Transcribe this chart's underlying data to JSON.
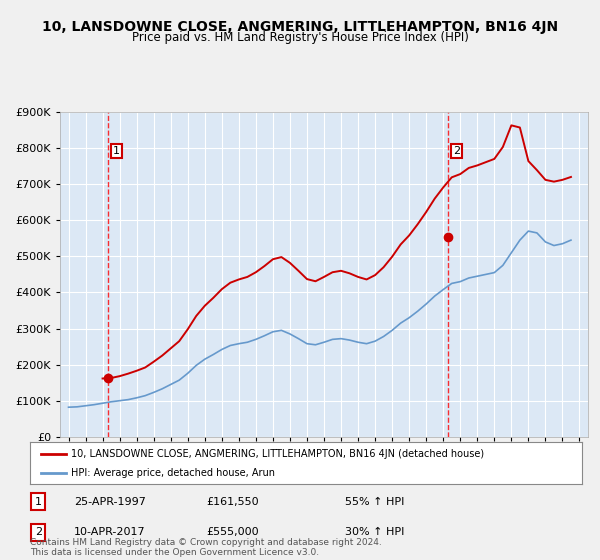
{
  "title": "10, LANSDOWNE CLOSE, ANGMERING, LITTLEHAMPTON, BN16 4JN",
  "subtitle": "Price paid vs. HM Land Registry's House Price Index (HPI)",
  "ylabel": "",
  "xlabel": "",
  "ylim": [
    0,
    900000
  ],
  "yticks": [
    0,
    100000,
    200000,
    300000,
    400000,
    500000,
    600000,
    700000,
    800000,
    900000
  ],
  "ytick_labels": [
    "£0",
    "£100K",
    "£200K",
    "£300K",
    "£400K",
    "£500K",
    "£600K",
    "£700K",
    "£800K",
    "£900K"
  ],
  "background_color": "#e8f0f8",
  "plot_bg_color": "#dce8f5",
  "grid_color": "#ffffff",
  "purchases": [
    {
      "num": 1,
      "date": "25-APR-1997",
      "price": 161550,
      "pct": "55%",
      "year": 1997.32
    },
    {
      "num": 2,
      "date": "10-APR-2017",
      "price": 555000,
      "pct": "30%",
      "year": 2017.28
    }
  ],
  "legend_line1": "10, LANSDOWNE CLOSE, ANGMERING, LITTLEHAMPTON, BN16 4JN (detached house)",
  "legend_line2": "HPI: Average price, detached house, Arun",
  "footer": "Contains HM Land Registry data © Crown copyright and database right 2024.\nThis data is licensed under the Open Government Licence v3.0.",
  "red_color": "#cc0000",
  "blue_color": "#6699cc",
  "marker_box_color": "#cc0000",
  "hpi_years": [
    1995,
    1995.5,
    1996,
    1996.5,
    1997,
    1997.5,
    1998,
    1998.5,
    1999,
    1999.5,
    2000,
    2000.5,
    2001,
    2001.5,
    2002,
    2002.5,
    2003,
    2003.5,
    2004,
    2004.5,
    2005,
    2005.5,
    2006,
    2006.5,
    2007,
    2007.5,
    2008,
    2008.5,
    2009,
    2009.5,
    2010,
    2010.5,
    2011,
    2011.5,
    2012,
    2012.5,
    2013,
    2013.5,
    2014,
    2014.5,
    2015,
    2015.5,
    2016,
    2016.5,
    2017,
    2017.5,
    2018,
    2018.5,
    2019,
    2019.5,
    2020,
    2020.5,
    2021,
    2021.5,
    2022,
    2022.5,
    2023,
    2023.5,
    2024,
    2024.5
  ],
  "hpi_values": [
    82000,
    83000,
    86000,
    89000,
    93000,
    97000,
    100000,
    103000,
    108000,
    114000,
    123000,
    133000,
    145000,
    157000,
    176000,
    198000,
    215000,
    228000,
    242000,
    253000,
    258000,
    262000,
    270000,
    280000,
    291000,
    295000,
    285000,
    272000,
    258000,
    255000,
    262000,
    270000,
    272000,
    268000,
    262000,
    258000,
    265000,
    278000,
    295000,
    315000,
    330000,
    348000,
    368000,
    390000,
    408000,
    425000,
    430000,
    440000,
    445000,
    450000,
    455000,
    475000,
    510000,
    545000,
    570000,
    565000,
    540000,
    530000,
    535000,
    545000
  ],
  "price_years": [
    1995,
    1995.5,
    1996,
    1996.5,
    1997,
    1997.5,
    1998,
    1998.5,
    1999,
    1999.5,
    2000,
    2000.5,
    2001,
    2001.5,
    2002,
    2002.5,
    2003,
    2003.5,
    2004,
    2004.5,
    2005,
    2005.5,
    2006,
    2006.5,
    2007,
    2007.5,
    2008,
    2008.5,
    2009,
    2009.5,
    2010,
    2010.5,
    2011,
    2011.5,
    2012,
    2012.5,
    2013,
    2013.5,
    2014,
    2014.5,
    2015,
    2015.5,
    2016,
    2016.5,
    2017,
    2017.5,
    2018,
    2018.5,
    2019,
    2019.5,
    2020,
    2020.5,
    2021,
    2021.5,
    2022,
    2022.5,
    2023,
    2023.5,
    2024,
    2024.5
  ],
  "price_values": [
    null,
    null,
    null,
    null,
    161550,
    163000,
    168000,
    175000,
    183000,
    192000,
    208000,
    225000,
    245000,
    265000,
    298000,
    335000,
    363000,
    385000,
    409000,
    427000,
    436000,
    443000,
    456000,
    473000,
    492000,
    498000,
    482000,
    460000,
    437000,
    431000,
    443000,
    456000,
    460000,
    453000,
    443000,
    436000,
    448000,
    470000,
    499000,
    533000,
    558000,
    589000,
    623000,
    660000,
    691000,
    719000,
    728000,
    745000,
    752000,
    761000,
    770000,
    803000,
    863000,
    857000,
    764000,
    739000,
    712000,
    707000,
    712000,
    720000
  ],
  "xlim": [
    1994.5,
    2025.5
  ],
  "xticks": [
    1995,
    1996,
    1997,
    1998,
    1999,
    2000,
    2001,
    2002,
    2003,
    2004,
    2005,
    2006,
    2007,
    2008,
    2009,
    2010,
    2011,
    2012,
    2013,
    2014,
    2015,
    2016,
    2017,
    2018,
    2019,
    2020,
    2021,
    2022,
    2023,
    2024,
    2025
  ]
}
